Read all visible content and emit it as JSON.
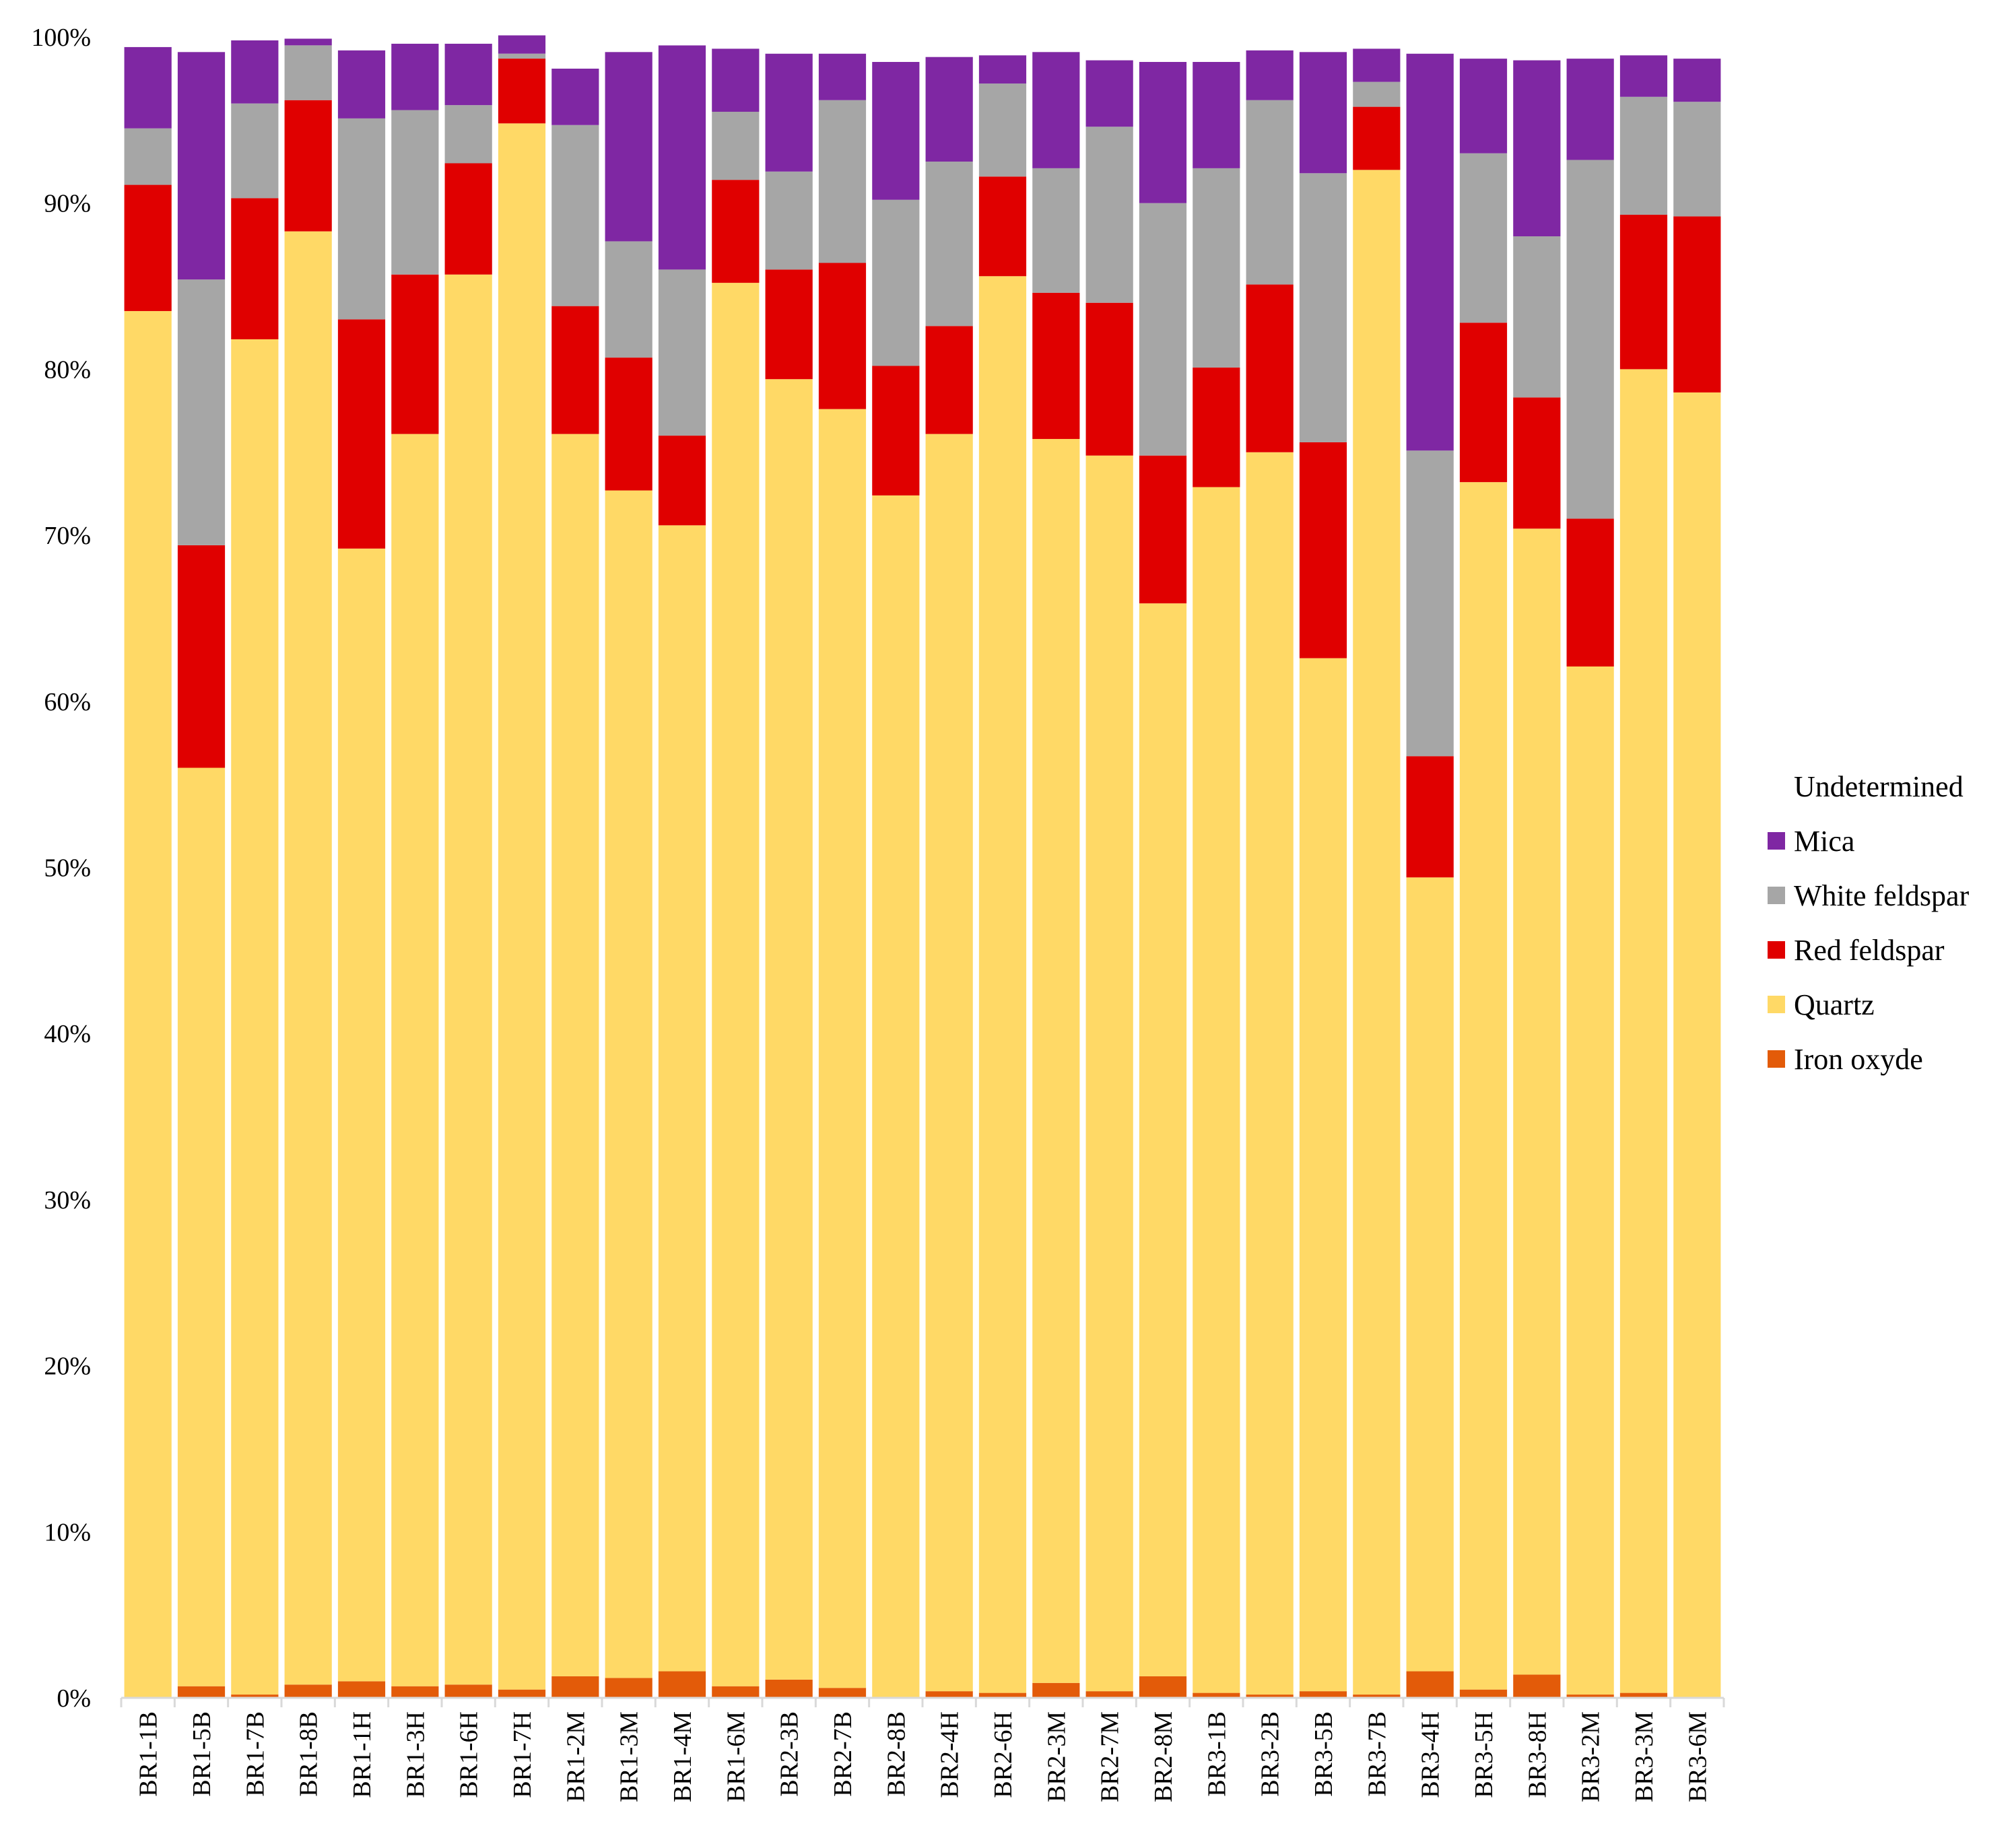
{
  "chart_data": {
    "type": "bar",
    "stacked": true,
    "percent": true,
    "title": "",
    "xlabel": "",
    "ylabel": "",
    "ylim": [
      0,
      100
    ],
    "yticks": [
      "0%",
      "10%",
      "20%",
      "30%",
      "40%",
      "50%",
      "60%",
      "70%",
      "80%",
      "90%",
      "100%"
    ],
    "grid": false,
    "legend_position": "right",
    "categories": [
      "BR1-1B",
      "BR1-5B",
      "BR1-7B",
      "BR1-8B",
      "BR1-1H",
      "BR1-3H",
      "BR1-6H",
      "BR1-7H",
      "BR1-2M",
      "BR1-3M",
      "BR1-4M",
      "BR1-6M",
      "BR2-3B",
      "BR2-7B",
      "BR2-8B",
      "BR2-4H",
      "BR2-6H",
      "BR2-3M",
      "BR2-7M",
      "BR2-8M",
      "BR3-1B",
      "BR3-2B",
      "BR3-5B",
      "BR3-7B",
      "BR3-4H",
      "BR3-5H",
      "BR3-8H",
      "BR3-2M",
      "BR3-3M",
      "BR3-6M"
    ],
    "series": [
      {
        "name": "Iron oxyde",
        "color": "#e35b09",
        "values": [
          0.0,
          0.7,
          0.2,
          0.8,
          1.0,
          0.7,
          0.8,
          0.5,
          1.3,
          1.2,
          1.6,
          0.7,
          1.1,
          0.6,
          0.0,
          0.4,
          0.3,
          0.9,
          0.4,
          1.3,
          0.3,
          0.2,
          0.4,
          0.2,
          1.6,
          0.5,
          1.4,
          0.2,
          0.3,
          0.0
        ]
      },
      {
        "name": "Quartz",
        "color": "#ffd966",
        "values": [
          83.5,
          55.3,
          81.6,
          87.5,
          68.2,
          75.4,
          84.9,
          94.3,
          74.8,
          71.5,
          69.0,
          84.5,
          78.3,
          77.0,
          72.4,
          75.7,
          85.3,
          74.9,
          74.4,
          64.6,
          72.6,
          74.8,
          62.2,
          91.8,
          47.8,
          72.7,
          69.0,
          61.9,
          79.7,
          78.6
        ]
      },
      {
        "name": "Red feldspar",
        "color": "#e00000",
        "values": [
          7.6,
          13.4,
          8.5,
          7.9,
          13.8,
          9.6,
          6.7,
          3.9,
          7.7,
          8.0,
          5.4,
          6.2,
          6.6,
          8.8,
          7.8,
          6.5,
          6.0,
          8.8,
          9.2,
          8.9,
          7.2,
          10.1,
          13.0,
          3.8,
          7.3,
          9.6,
          7.9,
          8.9,
          9.3,
          10.6
        ]
      },
      {
        "name": "White feldspar",
        "color": "#a6a6a6",
        "values": [
          3.4,
          16.0,
          5.7,
          3.3,
          12.1,
          9.9,
          3.5,
          0.3,
          10.9,
          7.0,
          10.0,
          4.1,
          5.9,
          9.8,
          10.0,
          9.9,
          5.6,
          7.5,
          10.6,
          15.2,
          12.0,
          11.1,
          16.2,
          1.5,
          18.4,
          10.2,
          9.7,
          21.6,
          7.1,
          6.9
        ]
      },
      {
        "name": "Mica",
        "color": "#7f27a3",
        "values": [
          4.9,
          13.7,
          3.8,
          0.4,
          4.1,
          4.0,
          3.7,
          1.1,
          3.4,
          11.4,
          13.5,
          3.8,
          7.1,
          2.8,
          8.3,
          6.3,
          1.7,
          7.0,
          4.0,
          8.5,
          6.4,
          3.0,
          7.3,
          2.0,
          23.9,
          5.7,
          10.6,
          6.1,
          2.5,
          2.6
        ]
      },
      {
        "name": "Undetermined",
        "color": "#ffffff",
        "values": [
          0.6,
          0.9,
          0.3,
          0.0,
          0.8,
          0.4,
          0.4,
          0.0,
          1.9,
          0.9,
          0.5,
          0.6,
          1.1,
          1.1,
          1.6,
          1.3,
          1.2,
          1.0,
          1.5,
          1.6,
          1.6,
          0.9,
          1.0,
          0.8,
          1.1,
          1.4,
          1.5,
          1.4,
          1.2,
          1.4
        ]
      }
    ],
    "legend_order": [
      "Undetermined",
      "Mica",
      "White feldspar",
      "Red feldspar",
      "Quartz",
      "Iron oxyde"
    ]
  }
}
